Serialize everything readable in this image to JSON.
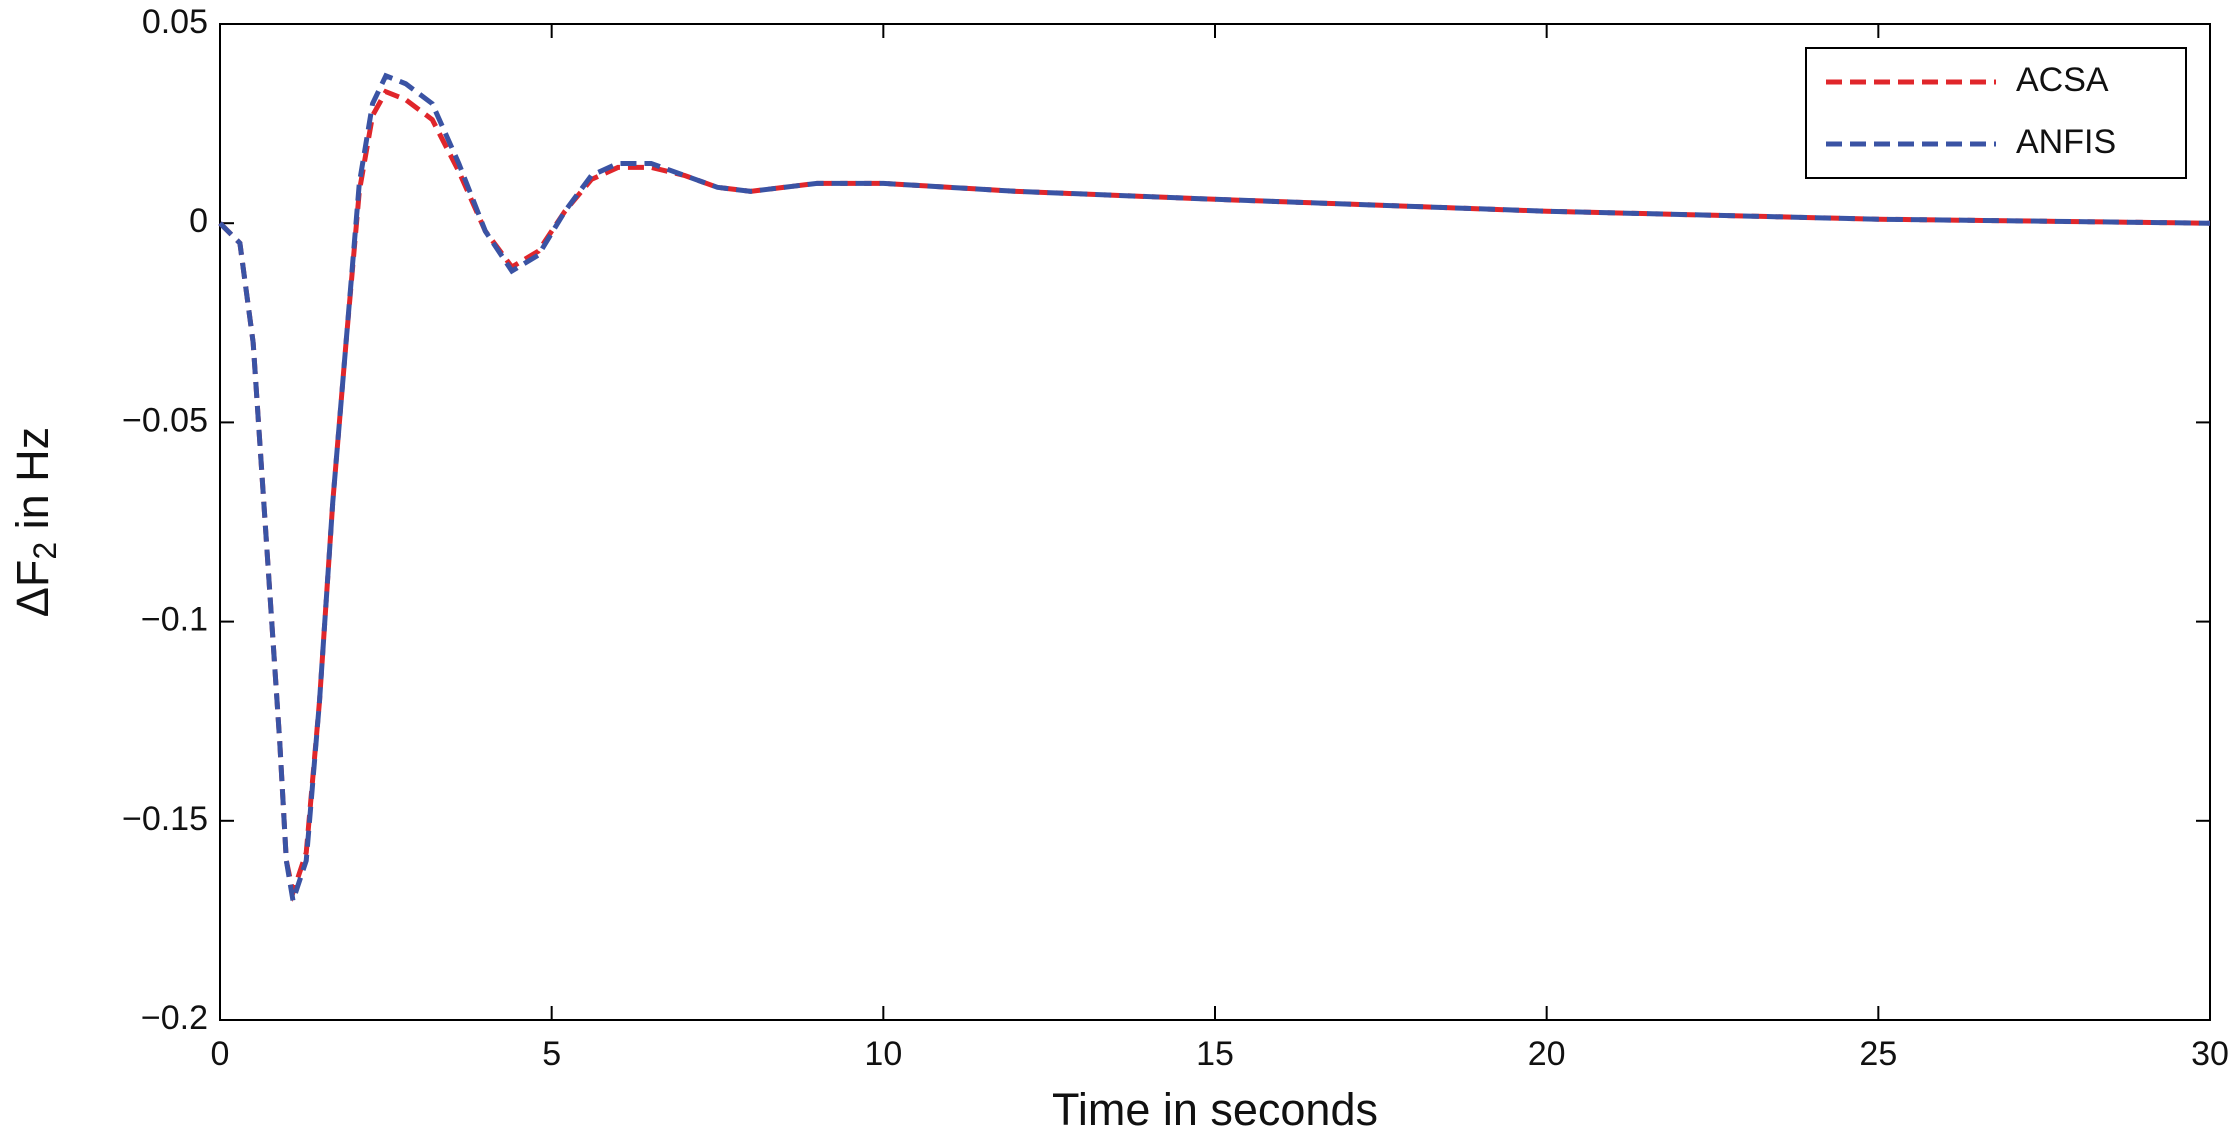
{
  "chart_data": {
    "type": "line",
    "xlabel": "Time in seconds",
    "ylabel": [
      "ΔF",
      "2",
      " in Hz"
    ],
    "x": [
      0,
      0.3,
      0.5,
      0.7,
      0.9,
      1.0,
      1.1,
      1.3,
      1.5,
      1.7,
      1.9,
      2.1,
      2.3,
      2.5,
      2.8,
      3.2,
      3.6,
      4.0,
      4.4,
      4.8,
      5.2,
      5.6,
      6.0,
      6.5,
      7.0,
      7.5,
      8.0,
      9.0,
      10,
      12,
      15,
      20,
      25,
      30
    ],
    "series": [
      {
        "name": "ACSA",
        "color": "#e0262b",
        "values": [
          0,
          -0.005,
          -0.03,
          -0.08,
          -0.13,
          -0.16,
          -0.168,
          -0.158,
          -0.12,
          -0.07,
          -0.03,
          0.008,
          0.027,
          0.033,
          0.031,
          0.026,
          0.013,
          -0.002,
          -0.011,
          -0.007,
          0.003,
          0.011,
          0.014,
          0.014,
          0.012,
          0.009,
          0.008,
          0.01,
          0.01,
          0.008,
          0.006,
          0.003,
          0.001,
          0
        ]
      },
      {
        "name": "ANFIS",
        "color": "#3a53a4",
        "values": [
          0,
          -0.005,
          -0.03,
          -0.08,
          -0.13,
          -0.16,
          -0.17,
          -0.16,
          -0.12,
          -0.07,
          -0.03,
          0.01,
          0.03,
          0.037,
          0.035,
          0.03,
          0.015,
          -0.002,
          -0.012,
          -0.008,
          0.003,
          0.012,
          0.015,
          0.015,
          0.012,
          0.009,
          0.008,
          0.01,
          0.01,
          0.008,
          0.006,
          0.003,
          0.001,
          0
        ]
      }
    ],
    "xlim": [
      0,
      30
    ],
    "xticks": [
      0,
      5,
      10,
      15,
      20,
      25,
      30
    ],
    "ylim": [
      -0.2,
      0.05
    ],
    "yticks": [
      {
        "value": -0.2,
        "label": "−0.2"
      },
      {
        "value": -0.15,
        "label": "−0.15"
      },
      {
        "value": -0.1,
        "label": "−0.1"
      },
      {
        "value": -0.05,
        "label": "−0.05"
      },
      0,
      0.05
    ],
    "grid": false,
    "legend": "upper right"
  }
}
